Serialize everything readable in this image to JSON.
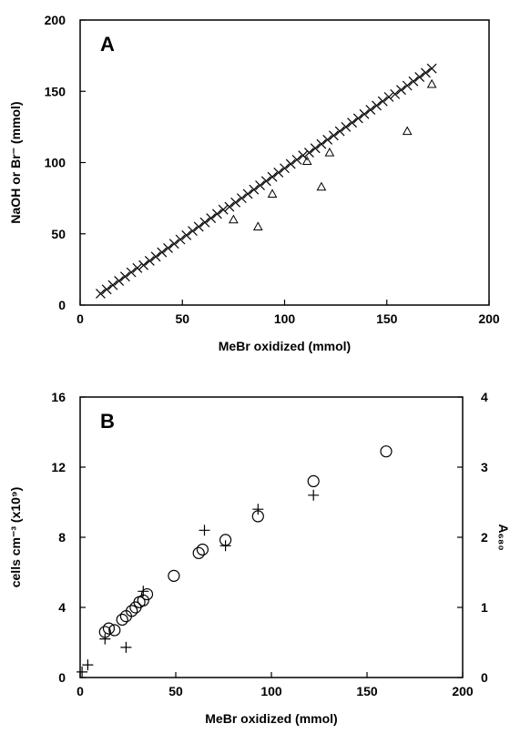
{
  "chart_data": [
    {
      "type": "scatter",
      "panel_label": "A",
      "x_label": "MeBr oxidized (mmol)",
      "y_label": "NaOH or Br⁻ (mmol)",
      "xlim": [
        0,
        200
      ],
      "ylim": [
        0,
        200
      ],
      "xticks": [
        0,
        50,
        100,
        150,
        200
      ],
      "yticks": [
        0,
        50,
        100,
        150,
        200
      ],
      "grid": false,
      "series": [
        {
          "marker": "x",
          "color": "#000000",
          "x": [
            10,
            13,
            16,
            19,
            22,
            25,
            28,
            31,
            34,
            37,
            40,
            43,
            46,
            49,
            52,
            55,
            58,
            61,
            64,
            67,
            70,
            73,
            76,
            79,
            82,
            85,
            88,
            91,
            94,
            97,
            100,
            103,
            106,
            109,
            112,
            115,
            118,
            121,
            124,
            127,
            130,
            133,
            136,
            139,
            142,
            145,
            148,
            151,
            154,
            157,
            160,
            163,
            166,
            169,
            172
          ],
          "values": [
            8,
            11,
            14,
            17,
            20,
            23,
            26,
            28,
            31,
            34,
            37,
            40,
            43,
            46,
            49,
            52,
            55,
            58,
            61,
            64,
            67,
            69,
            72,
            75,
            78,
            81,
            84,
            87,
            90,
            93,
            96,
            99,
            102,
            105,
            107,
            110,
            113,
            116,
            119,
            122,
            125,
            128,
            131,
            134,
            137,
            140,
            143,
            146,
            148,
            151,
            154,
            157,
            160,
            163,
            166
          ]
        },
        {
          "marker": "triangle",
          "color": "#000000",
          "x": [
            75,
            87,
            94,
            111,
            118,
            122,
            160,
            172
          ],
          "values": [
            60,
            55,
            78,
            101,
            83,
            107,
            122,
            155
          ]
        }
      ]
    },
    {
      "type": "scatter",
      "panel_label": "B",
      "x_label": "MeBr oxidized (mmol)",
      "y_label": "cells cm⁻³ (x10⁹)",
      "y2_label": "A₆₈₀",
      "xlim": [
        0,
        200
      ],
      "ylim": [
        0,
        16
      ],
      "y2lim": [
        0,
        4
      ],
      "xticks": [
        0,
        50,
        100,
        150,
        200
      ],
      "yticks": [
        0,
        4,
        8,
        12,
        16
      ],
      "y2ticks": [
        0,
        1,
        2,
        3,
        4
      ],
      "grid": false,
      "series": [
        {
          "marker": "circle",
          "color": "#000000",
          "x": [
            13,
            15,
            18,
            22,
            24,
            27,
            29,
            31,
            33,
            35,
            49,
            62,
            64,
            76,
            93,
            122,
            160
          ],
          "values": [
            2.6,
            2.8,
            2.7,
            3.3,
            3.5,
            3.8,
            4.0,
            4.3,
            4.4,
            4.75,
            5.8,
            7.1,
            7.3,
            7.85,
            9.2,
            11.2,
            12.9
          ]
        },
        {
          "marker": "plus",
          "color": "#000000",
          "axis": "y2",
          "x": [
            1,
            4,
            13,
            24,
            33,
            65,
            76,
            93,
            122
          ],
          "values": [
            0.08,
            0.18,
            0.55,
            0.43,
            1.23,
            2.1,
            1.88,
            2.4,
            2.6
          ]
        }
      ]
    }
  ]
}
